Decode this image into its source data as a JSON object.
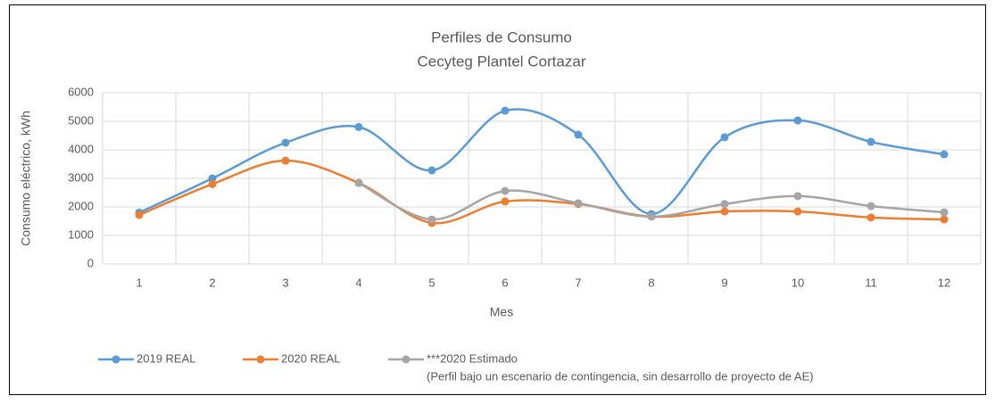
{
  "chart_data": {
    "type": "line",
    "title": "Perfiles de Consumo",
    "subtitle": "Cecyteg Plantel Cortazar",
    "x_label": "Mes",
    "y_label": "Consumo eléctrico, kWh",
    "categories": [
      "1",
      "2",
      "3",
      "4",
      "5",
      "6",
      "7",
      "8",
      "9",
      "10",
      "11",
      "12"
    ],
    "series": [
      {
        "name": "2019 REAL",
        "color": "#5b9bd5",
        "values": [
          1800,
          3000,
          4250,
          4800,
          3280,
          5370,
          4530,
          1750,
          4440,
          5030,
          4280,
          3840
        ]
      },
      {
        "name": "2020 REAL",
        "color": "#ed7d31",
        "values": [
          1720,
          2800,
          3620,
          2840,
          1440,
          2190,
          2100,
          1660,
          1840,
          1840,
          1630,
          1560
        ]
      },
      {
        "name": "***2020 Estimado",
        "color": "#a5a5a5",
        "values": [
          null,
          null,
          null,
          2840,
          1560,
          2560,
          2130,
          1660,
          2100,
          2380,
          2030,
          1810
        ]
      }
    ],
    "legend_note": "(Perfil bajo un escenario  de contingencia, sin desarrollo de proyecto de AE)",
    "ylim": [
      0,
      6000
    ],
    "yticks": [
      0,
      1000,
      2000,
      3000,
      4000,
      5000,
      6000
    ],
    "grid": true,
    "legend": "bottom",
    "smooth": true
  }
}
